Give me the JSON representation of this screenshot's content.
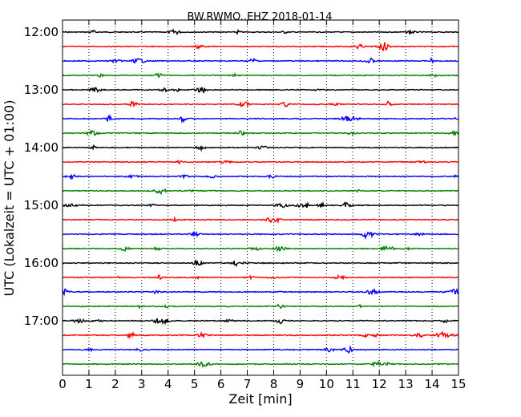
{
  "chart_data": {
    "type": "line",
    "subtype": "helicorder",
    "title": "BW.RWMO..EHZ 2018-01-14",
    "xlabel": "Zeit  [min]",
    "ylabel": "UTC (Lokalzeit = UTC + 01:00)",
    "xlim": [
      0,
      15
    ],
    "x_ticks": [
      "0",
      "1",
      "2",
      "3",
      "4",
      "5",
      "6",
      "7",
      "8",
      "9",
      "10",
      "11",
      "12",
      "13",
      "14",
      "15"
    ],
    "y_tick_labels": [
      "12:00",
      "13:00",
      "14:00",
      "15:00",
      "16:00",
      "17:00"
    ],
    "grid": "vertical dotted lines at each minute",
    "trace_colors": [
      "#000000",
      "#ff0000",
      "#0000ff",
      "#008000"
    ],
    "traces": [
      {
        "start": "12:00"
      },
      {
        "start": "12:15"
      },
      {
        "start": "12:30"
      },
      {
        "start": "12:45"
      },
      {
        "start": "13:00"
      },
      {
        "start": "13:15"
      },
      {
        "start": "13:30"
      },
      {
        "start": "13:45"
      },
      {
        "start": "14:00"
      },
      {
        "start": "14:15"
      },
      {
        "start": "14:30"
      },
      {
        "start": "14:45"
      },
      {
        "start": "15:00"
      },
      {
        "start": "15:15"
      },
      {
        "start": "15:30"
      },
      {
        "start": "15:45"
      },
      {
        "start": "16:00"
      },
      {
        "start": "16:15"
      },
      {
        "start": "16:30"
      },
      {
        "start": "16:45"
      },
      {
        "start": "17:00"
      },
      {
        "start": "17:15"
      },
      {
        "start": "17:30"
      },
      {
        "start": "17:45"
      }
    ]
  }
}
